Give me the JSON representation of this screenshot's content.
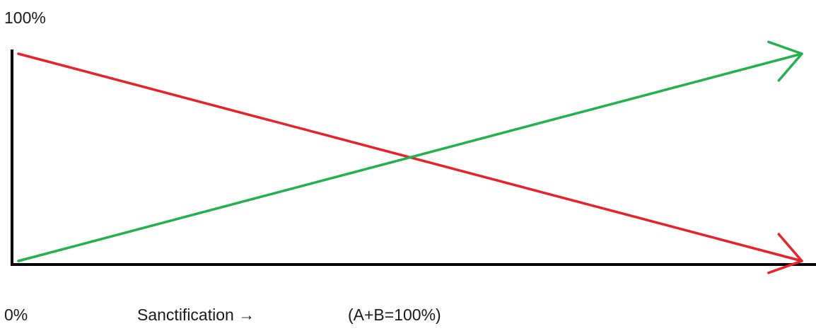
{
  "chart_data": {
    "type": "line",
    "title": "",
    "y_top_label": "100%",
    "origin_label": "0%",
    "xlabel": "Sanctification →",
    "annotation": "(A+B=100%)",
    "ylim": [
      0,
      100
    ],
    "xlim": [
      0,
      1
    ],
    "grid": false,
    "legend": "none",
    "series": [
      {
        "color": "#e8212b",
        "points": [
          {
            "x": 0,
            "y": 100
          },
          {
            "x": 1,
            "y": 0
          }
        ],
        "arrowhead": true
      },
      {
        "color": "#22b14c",
        "points": [
          {
            "x": 0,
            "y": 0
          },
          {
            "x": 1,
            "y": 100
          }
        ],
        "arrowhead": true
      }
    ]
  }
}
